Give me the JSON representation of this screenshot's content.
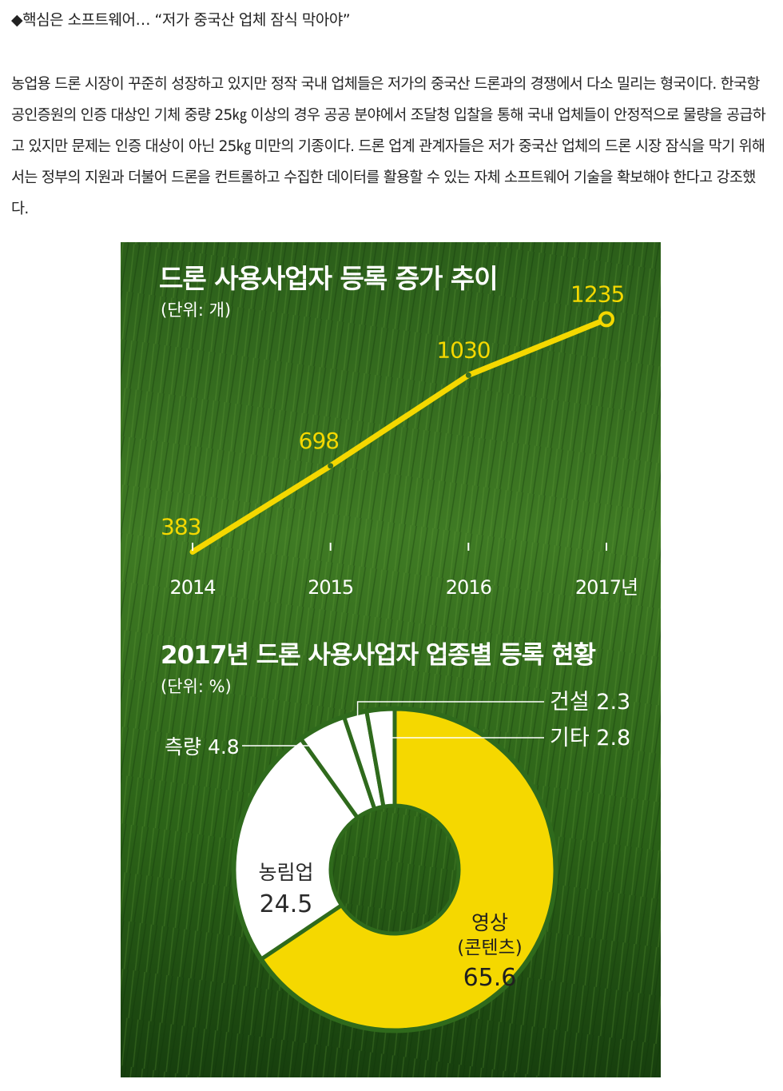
{
  "article": {
    "subheading": "◆핵심은 소프트웨어… “저가 중국산 업체 잠식 막아야”",
    "paragraph": "농업용 드론 시장이 꾸준히 성장하고 있지만 정작 국내 업체들은 저가의 중국산 드론과의 경쟁에서 다소 밀리는 형국이다. 한국항공인증원의 인증 대상인 기체 중량 25㎏ 이상의 경우 공공 분야에서 조달청 입찰을 통해 국내 업체들이 안정적으로 물량을 공급하고 있지만 문제는 인증 대상이 아닌 25㎏ 미만의 기종이다. 드론 업계 관계자들은 저가 중국산 업체의 드론 시장 잠식을 막기 위해서는 정부의 지원과 더불어 드론을 컨트롤하고 수집한 데이터를 활용할 수 있는 자체 소프트웨어 기술을 확보해야 한다고 강조했다."
  },
  "colors": {
    "accent": "#f5d800",
    "grass_dark": "#0f3a0d",
    "grass_mid": "#2f6e1c",
    "grass_light": "#5b9a31",
    "slice_white": "#ffffff"
  },
  "chart_data": [
    {
      "type": "line",
      "title": "드론 사용사업자 등록 증가 추이",
      "subtitle": "(단위: 개)",
      "x": [
        "2014",
        "2015",
        "2016",
        "2017년"
      ],
      "values": [
        383,
        698,
        1030,
        1235
      ],
      "value_labels": [
        "383",
        "698",
        "1030",
        "1235"
      ],
      "ylim": [
        200,
        1400
      ],
      "grid": false
    },
    {
      "type": "pie",
      "title": "2017년 드론 사용사업자 업종별 등록 현황",
      "subtitle": "(단위: %)",
      "slices": [
        {
          "label": "영상",
          "sublabel": "(콘텐츠)",
          "value": 65.6,
          "value_text": "65.6"
        },
        {
          "label": "농림업",
          "sublabel": "",
          "value": 24.5,
          "value_text": "24.5"
        },
        {
          "label": "측량",
          "sublabel": "",
          "value": 4.8,
          "value_text": "4.8"
        },
        {
          "label": "건설",
          "sublabel": "",
          "value": 2.3,
          "value_text": "2.3"
        },
        {
          "label": "기타",
          "sublabel": "",
          "value": 2.8,
          "value_text": "2.8"
        }
      ]
    }
  ]
}
